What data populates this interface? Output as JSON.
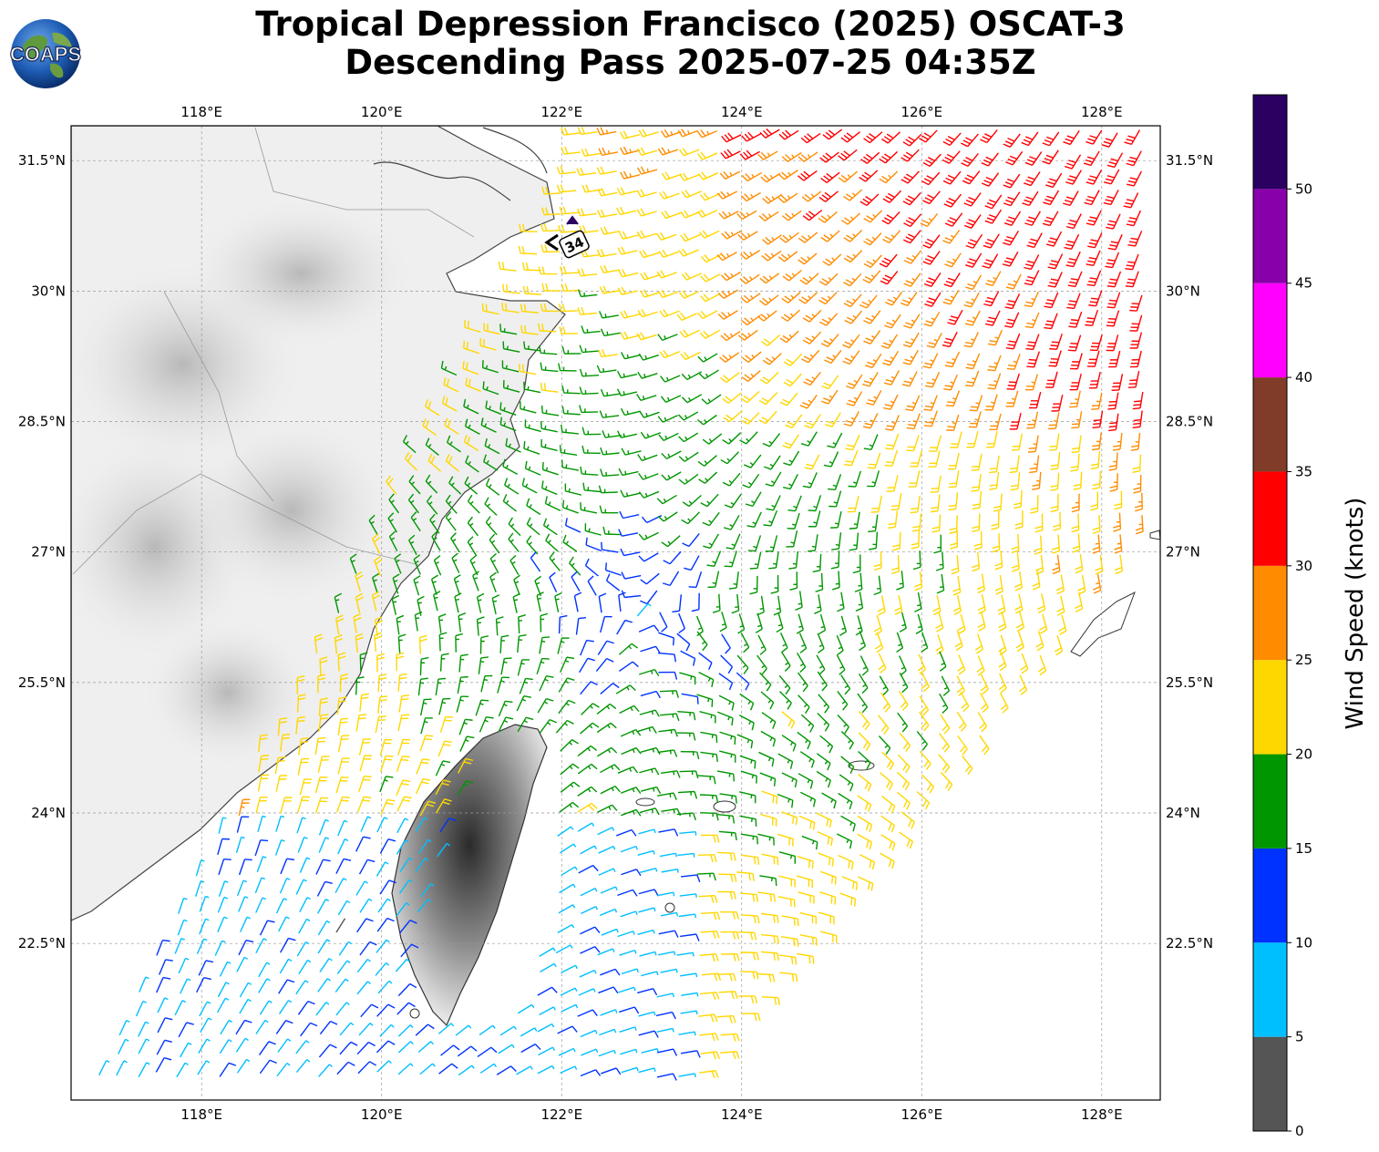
{
  "title": {
    "line1": "Tropical Depression Francisco (2025) OSCAT-3",
    "line2": "Descending Pass 2025-07-25 04:35Z"
  },
  "logo": {
    "text": "COAPS",
    "icon": "globe-icon"
  },
  "map": {
    "lon_range": [
      116.55,
      128.65
    ],
    "lat_range": [
      20.7,
      31.9
    ],
    "lon_ticks": [
      {
        "value": 118,
        "label": "118°E"
      },
      {
        "value": 120,
        "label": "120°E"
      },
      {
        "value": 122,
        "label": "122°E"
      },
      {
        "value": 124,
        "label": "124°E"
      },
      {
        "value": 126,
        "label": "126°E"
      },
      {
        "value": 128,
        "label": "128°E"
      }
    ],
    "lat_ticks": [
      {
        "value": 31.5,
        "label": "31.5°N"
      },
      {
        "value": 30,
        "label": "30°N"
      },
      {
        "value": 28.5,
        "label": "28.5°N"
      },
      {
        "value": 27,
        "label": "27°N"
      },
      {
        "value": 25.5,
        "label": "25.5°N"
      },
      {
        "value": 24,
        "label": "24°N"
      },
      {
        "value": 22.5,
        "label": "22.5°N"
      }
    ],
    "grid": true,
    "storm_center": {
      "lon": 122.9,
      "lat": 26.35
    },
    "storm_marker": {
      "label": "34",
      "lon": 122.1,
      "lat": 30.6
    }
  },
  "colorbar": {
    "label": "Wind Speed (knots)",
    "bins": [
      {
        "from": 0,
        "to": 5,
        "color": "#555555"
      },
      {
        "from": 5,
        "to": 10,
        "color": "#00bfff"
      },
      {
        "from": 10,
        "to": 15,
        "color": "#0032ff"
      },
      {
        "from": 15,
        "to": 20,
        "color": "#009600"
      },
      {
        "from": 20,
        "to": 25,
        "color": "#ffd700"
      },
      {
        "from": 25,
        "to": 30,
        "color": "#ff8c00"
      },
      {
        "from": 30,
        "to": 35,
        "color": "#ff0000"
      },
      {
        "from": 35,
        "to": 40,
        "color": "#803c28"
      },
      {
        "from": 40,
        "to": 45,
        "color": "#ff00ff"
      },
      {
        "from": 45,
        "to": 50,
        "color": "#8800aa"
      },
      {
        "from": 50,
        "to": 55,
        "color": "#2a0060"
      }
    ],
    "ticks": [
      "0",
      "5",
      "10",
      "15",
      "20",
      "25",
      "30",
      "35",
      "40",
      "45",
      "50"
    ]
  }
}
